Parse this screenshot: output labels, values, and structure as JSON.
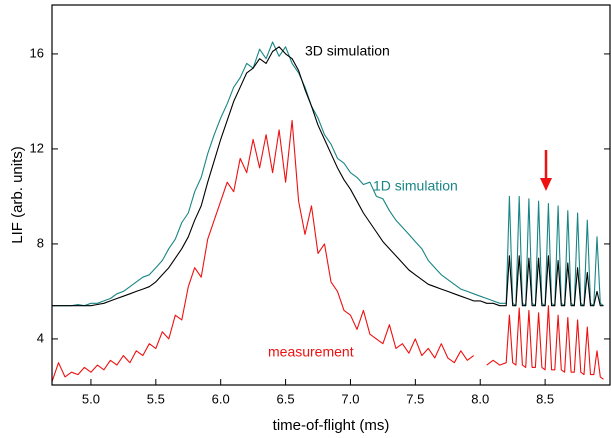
{
  "chart_data": {
    "type": "line",
    "xlabel": "time-of-flight (ms)",
    "ylabel": "LIF (arb. units)",
    "xlim": [
      4.7,
      9.0
    ],
    "ylim": [
      2.06,
      18.06
    ],
    "xticks": [
      {
        "value": 5,
        "label": "5.0"
      },
      {
        "value": 5.5,
        "label": "5.5"
      },
      {
        "value": 6,
        "label": "6.0"
      },
      {
        "value": 6.5,
        "label": "6.5"
      },
      {
        "value": 7,
        "label": "7.0"
      },
      {
        "value": 7.5,
        "label": "7.5"
      },
      {
        "value": 8,
        "label": "8.0"
      },
      {
        "value": 8.5,
        "label": "8.5"
      }
    ],
    "yticks": [
      4,
      8,
      12,
      16
    ],
    "annotations": [
      {
        "text": "3D simulation",
        "color": "#000000"
      },
      {
        "text": "1D simulation",
        "color": "#1a8585"
      },
      {
        "text": "measurement",
        "color": "#ee1111"
      }
    ],
    "x": [
      4.7,
      4.75,
      4.8,
      4.85,
      4.9,
      4.95,
      5.0,
      5.05,
      5.1,
      5.15,
      5.2,
      5.25,
      5.3,
      5.35,
      5.4,
      5.45,
      5.5,
      5.55,
      5.6,
      5.65,
      5.7,
      5.75,
      5.8,
      5.85,
      5.9,
      5.95,
      6.0,
      6.05,
      6.1,
      6.15,
      6.2,
      6.25,
      6.3,
      6.35,
      6.4,
      6.45,
      6.5,
      6.55,
      6.6,
      6.65,
      6.7,
      6.75,
      6.8,
      6.85,
      6.9,
      6.95,
      7.0,
      7.05,
      7.1,
      7.15,
      7.2,
      7.25,
      7.3,
      7.35,
      7.4,
      7.45,
      7.5,
      7.55,
      7.6,
      7.65,
      7.7,
      7.75,
      7.8,
      7.85,
      7.9,
      7.95,
      8.0,
      8.05,
      8.1,
      8.15,
      8.2,
      8.225,
      8.25,
      8.275,
      8.3,
      8.325,
      8.35,
      8.375,
      8.4,
      8.425,
      8.45,
      8.475,
      8.5,
      8.525,
      8.55,
      8.575,
      8.6,
      8.625,
      8.65,
      8.675,
      8.7,
      8.725,
      8.75,
      8.775,
      8.8,
      8.825,
      8.85,
      8.875,
      8.9,
      8.925,
      8.95
    ],
    "series": [
      {
        "name": "1D simulation",
        "color": "#1a8585",
        "values": [
          5.4,
          5.4,
          5.4,
          5.4,
          5.45,
          5.4,
          5.5,
          5.5,
          5.6,
          5.7,
          5.9,
          6.0,
          6.2,
          6.4,
          6.6,
          6.7,
          7.0,
          7.3,
          7.8,
          8.2,
          8.9,
          9.3,
          10.2,
          10.8,
          11.8,
          12.6,
          13.3,
          13.9,
          14.6,
          15.0,
          15.6,
          15.4,
          16.2,
          15.8,
          16.5,
          15.9,
          16.3,
          15.6,
          15.2,
          14.6,
          13.8,
          13.3,
          12.6,
          12.2,
          11.6,
          11.4,
          11.0,
          10.8,
          10.5,
          10.6,
          10.0,
          9.9,
          9.4,
          9.0,
          8.7,
          8.4,
          8.1,
          7.8,
          7.3,
          7.0,
          6.7,
          6.5,
          6.3,
          6.1,
          6.0,
          5.9,
          5.8,
          5.7,
          5.6,
          5.5,
          5.5,
          10.0,
          5.5,
          5.4,
          10.0,
          5.5,
          5.4,
          9.9,
          5.5,
          5.4,
          9.8,
          5.5,
          5.4,
          9.7,
          5.5,
          5.4,
          9.6,
          5.5,
          5.4,
          9.4,
          5.5,
          5.4,
          9.3,
          5.5,
          5.4,
          9.0,
          5.5,
          5.4,
          8.3,
          5.5,
          5.4
        ]
      },
      {
        "name": "3D simulation",
        "color": "#000000",
        "values": [
          5.4,
          5.4,
          5.4,
          5.4,
          5.4,
          5.4,
          5.4,
          5.45,
          5.5,
          5.6,
          5.7,
          5.8,
          5.9,
          6.0,
          6.1,
          6.2,
          6.4,
          6.7,
          7.0,
          7.4,
          7.8,
          8.3,
          9.0,
          9.6,
          10.6,
          11.5,
          12.4,
          13.2,
          14.0,
          14.6,
          15.2,
          15.4,
          15.8,
          15.6,
          16.1,
          16.3,
          16.0,
          15.8,
          15.3,
          14.5,
          13.8,
          13.0,
          12.4,
          11.8,
          11.2,
          10.7,
          10.3,
          9.8,
          9.3,
          8.9,
          8.5,
          8.1,
          7.8,
          7.5,
          7.2,
          6.9,
          6.7,
          6.5,
          6.3,
          6.2,
          6.1,
          6.0,
          5.9,
          5.8,
          5.7,
          5.6,
          5.6,
          5.5,
          5.5,
          5.4,
          5.4,
          7.5,
          5.4,
          5.4,
          7.5,
          5.4,
          5.4,
          7.4,
          5.4,
          5.4,
          7.4,
          5.4,
          5.4,
          7.5,
          5.4,
          5.4,
          7.3,
          5.4,
          5.4,
          7.2,
          5.4,
          5.4,
          7.0,
          5.4,
          5.4,
          6.8,
          5.4,
          5.4,
          6.0,
          5.4,
          5.4
        ]
      },
      {
        "name": "measurement",
        "color": "#ee1111",
        "values": [
          2.2,
          3.0,
          2.4,
          2.6,
          2.5,
          2.8,
          2.6,
          2.9,
          2.7,
          3.1,
          2.9,
          3.3,
          3.0,
          3.5,
          3.3,
          3.8,
          3.6,
          4.3,
          4.0,
          5.0,
          4.8,
          6.2,
          7.0,
          6.6,
          8.2,
          9.0,
          9.8,
          10.6,
          10.2,
          11.6,
          11.0,
          12.4,
          11.2,
          12.6,
          11.0,
          12.8,
          10.6,
          13.2,
          9.8,
          8.4,
          9.6,
          7.6,
          8.0,
          6.4,
          6.0,
          5.2,
          5.0,
          4.4,
          5.2,
          4.2,
          4.0,
          3.8,
          4.6,
          3.6,
          3.8,
          3.4,
          4.0,
          3.3,
          3.6,
          3.2,
          3.8,
          3.2,
          3.0,
          3.5,
          3.1,
          3.3,
          null,
          2.9,
          3.1,
          2.9,
          3.0,
          5.0,
          3.0,
          2.9,
          5.3,
          2.9,
          2.8,
          5.2,
          2.8,
          2.8,
          5.1,
          2.8,
          2.7,
          5.4,
          2.7,
          2.7,
          5.0,
          2.7,
          2.6,
          4.9,
          2.6,
          2.6,
          4.8,
          2.6,
          2.5,
          4.5,
          2.5,
          2.5,
          3.5,
          2.4,
          2.3
        ]
      }
    ]
  }
}
